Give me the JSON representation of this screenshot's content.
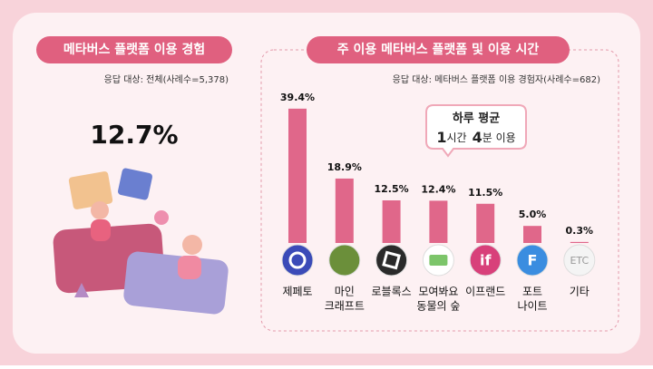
{
  "left_panel": {
    "title": "메타버스 플랫폼 이용 경험",
    "respondents": "응답 대상: 전체(사례수=5,378)",
    "rate": "12.7%"
  },
  "chart_data": {
    "type": "bar",
    "title": "주 이용 메타버스 플랫폼 및 이용 시간",
    "subtitle": "응답 대상: 메타버스 플랫폼 이용 경험자(사례수=682)",
    "categories": [
      [
        "제페토"
      ],
      [
        "마인",
        "크래프트"
      ],
      [
        "로블록스"
      ],
      [
        "모여봐요",
        "동물의 숲"
      ],
      [
        "이프랜드"
      ],
      [
        "포트",
        "나이트"
      ],
      [
        "기타"
      ]
    ],
    "values": [
      39.4,
      18.9,
      12.5,
      12.4,
      11.5,
      5.0,
      0.3
    ],
    "value_labels": [
      "39.4%",
      "18.9%",
      "12.5%",
      "12.4%",
      "11.5%",
      "5.0%",
      "0.3%"
    ],
    "color": "#e0678a",
    "icon_labels": [
      null,
      null,
      null,
      null,
      "if",
      "F",
      "ETC"
    ],
    "daily_average": {
      "title": "하루 평균",
      "hours": "1",
      "hours_unit": "시간",
      "minutes": "4",
      "minutes_unit": "분  이용"
    }
  }
}
